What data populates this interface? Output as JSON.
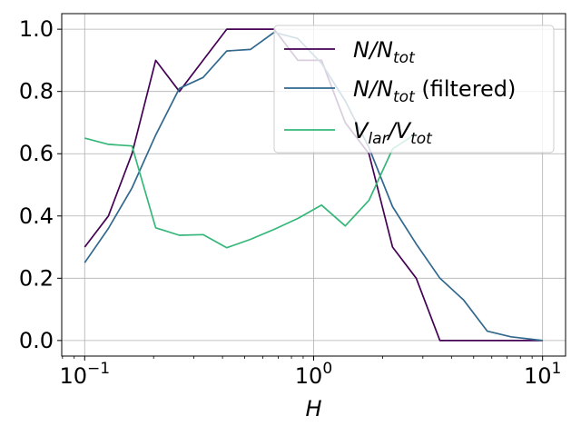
{
  "chart_data": {
    "type": "line",
    "xscale": "log",
    "xlabel": "H",
    "xlim": [
      0.0794,
      12.6
    ],
    "ylim": [
      -0.05,
      1.05
    ],
    "grid": true,
    "legend_position": "top-right",
    "xticks": [
      {
        "value": 0.1,
        "base": "10",
        "exp": "−1"
      },
      {
        "value": 1,
        "base": "10",
        "exp": "0"
      },
      {
        "value": 10,
        "base": "10",
        "exp": "1"
      }
    ],
    "yticks": [
      {
        "value": 0.0,
        "label": "0.0"
      },
      {
        "value": 0.2,
        "label": "0.2"
      },
      {
        "value": 0.4,
        "label": "0.4"
      },
      {
        "value": 0.6,
        "label": "0.6"
      },
      {
        "value": 0.8,
        "label": "0.8"
      },
      {
        "value": 1.0,
        "label": "1.0"
      }
    ],
    "x": [
      0.1,
      0.1269,
      0.161,
      0.2043,
      0.2593,
      0.329,
      0.4175,
      0.5298,
      0.6723,
      0.8532,
      1.0826,
      1.3738,
      1.7433,
      2.2122,
      2.8073,
      3.5624,
      4.5207,
      5.7368,
      7.2798,
      10
    ],
    "series": [
      {
        "name": "N/Ntot",
        "legend": {
          "main": "N/N",
          "sub": "tot",
          "suffix": ""
        },
        "color": "#440154",
        "values": [
          0.3,
          0.4,
          0.6,
          0.9,
          0.8,
          0.9,
          1.0,
          1.0,
          1.0,
          0.9,
          0.9,
          0.7,
          0.6,
          0.3,
          0.2,
          0.0,
          0.0,
          0.0,
          0.0,
          0.0
        ]
      },
      {
        "name": "N/Ntot (filtered)",
        "legend": {
          "main": "N/N",
          "sub": "tot",
          "suffix": " (filtered)"
        },
        "color": "#31688e",
        "values": [
          0.25,
          0.36,
          0.49,
          0.66,
          0.81,
          0.845,
          0.93,
          0.935,
          0.99,
          0.97,
          0.89,
          0.77,
          0.62,
          0.43,
          0.31,
          0.2,
          0.13,
          0.03,
          0.012,
          0.0
        ]
      },
      {
        "name": "Vlar/Vtot",
        "legend": {
          "main": "V",
          "sub": "lar",
          "mid": "/V",
          "sub2": "tot",
          "suffix": ""
        },
        "color": "#35b779",
        "values": [
          0.65,
          0.63,
          0.625,
          0.362,
          0.338,
          0.34,
          0.298,
          0.325,
          0.357,
          0.392,
          0.435,
          0.368,
          0.45,
          0.615,
          0.665,
          null,
          null,
          null,
          null,
          null
        ]
      }
    ]
  }
}
